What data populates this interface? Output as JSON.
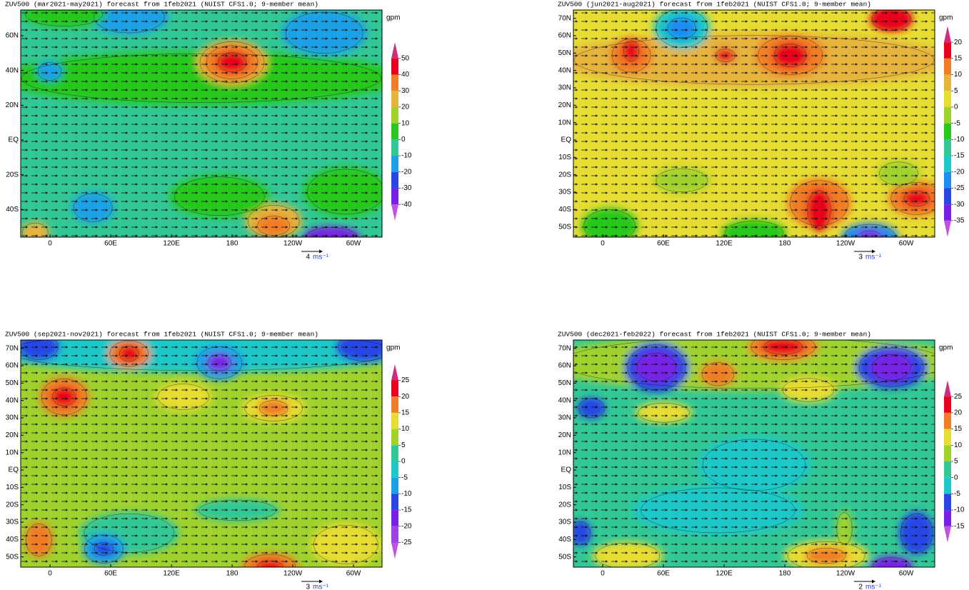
{
  "panels": [
    {
      "title": "ZUV500 (mar2021-may2021) forecast from 1feb2021 (NUIST CFS1.0; 9-member mean)",
      "lat_ticks": [
        {
          "value": 60,
          "label": "60N"
        },
        {
          "value": 40,
          "label": "40N"
        },
        {
          "value": 20,
          "label": "20N"
        },
        {
          "value": 0,
          "label": "EQ"
        },
        {
          "value": -20,
          "label": "20S"
        },
        {
          "value": -40,
          "label": "40S"
        }
      ],
      "lon_ticks": [
        {
          "value": 0,
          "label": "0"
        },
        {
          "value": 60,
          "label": "60E"
        },
        {
          "value": 120,
          "label": "120E"
        },
        {
          "value": 180,
          "label": "180"
        },
        {
          "value": 240,
          "label": "120W"
        },
        {
          "value": 300,
          "label": "60W"
        }
      ],
      "colorbar": {
        "unit": "gpm",
        "levels": [
          50,
          40,
          30,
          20,
          10,
          0,
          -10,
          -20,
          -30,
          -40
        ],
        "colors": [
          "#d2297b",
          "#e8001e",
          "#f07d27",
          "#e6b43c",
          "#a0d22d",
          "#28c81e",
          "#32c896",
          "#1ea0e6",
          "#2846e6",
          "#7820e6",
          "#c050e6"
        ]
      },
      "reference_vector": {
        "magnitude": 4,
        "unit": "ms⁻¹"
      }
    },
    {
      "title": "ZUV500 (jun2021-aug2021) forecast from 1feb2021 (NUIST CFS1.0; 9-member mean)",
      "lat_ticks": [
        {
          "value": 70,
          "label": "70N"
        },
        {
          "value": 60,
          "label": "60N"
        },
        {
          "value": 50,
          "label": "50N"
        },
        {
          "value": 40,
          "label": "40N"
        },
        {
          "value": 30,
          "label": "30N"
        },
        {
          "value": 20,
          "label": "20N"
        },
        {
          "value": 10,
          "label": "10N"
        },
        {
          "value": 0,
          "label": "EQ"
        },
        {
          "value": -10,
          "label": "10S"
        },
        {
          "value": -20,
          "label": "20S"
        },
        {
          "value": -30,
          "label": "30S"
        },
        {
          "value": -40,
          "label": "40S"
        },
        {
          "value": -50,
          "label": "50S"
        }
      ],
      "lon_ticks": [
        {
          "value": 0,
          "label": "0"
        },
        {
          "value": 60,
          "label": "60E"
        },
        {
          "value": 120,
          "label": "120E"
        },
        {
          "value": 180,
          "label": "180"
        },
        {
          "value": 240,
          "label": "120W"
        },
        {
          "value": 300,
          "label": "60W"
        }
      ],
      "colorbar": {
        "unit": "gpm",
        "levels": [
          20,
          15,
          10,
          5,
          0,
          -5,
          -10,
          -15,
          -20,
          -25,
          -30,
          -35
        ],
        "colors": [
          "#d2297b",
          "#e8001e",
          "#f07d27",
          "#e6b43c",
          "#e6dc32",
          "#a0d22d",
          "#28c81e",
          "#32c896",
          "#1ec8c8",
          "#1e8cf0",
          "#2846e6",
          "#7820e6",
          "#c050e6"
        ]
      },
      "reference_vector": {
        "magnitude": 3,
        "unit": "ms⁻¹"
      }
    },
    {
      "title": "ZUV500 (sep2021-nov2021) forecast from 1feb2021 (NUIST CFS1.0; 9-member mean)",
      "lat_ticks": [
        {
          "value": 70,
          "label": "70N"
        },
        {
          "value": 60,
          "label": "60N"
        },
        {
          "value": 50,
          "label": "50N"
        },
        {
          "value": 40,
          "label": "40N"
        },
        {
          "value": 30,
          "label": "30N"
        },
        {
          "value": 20,
          "label": "20N"
        },
        {
          "value": 10,
          "label": "10N"
        },
        {
          "value": 0,
          "label": "EQ"
        },
        {
          "value": -10,
          "label": "10S"
        },
        {
          "value": -20,
          "label": "20S"
        },
        {
          "value": -30,
          "label": "30S"
        },
        {
          "value": -40,
          "label": "40S"
        },
        {
          "value": -50,
          "label": "50S"
        }
      ],
      "lon_ticks": [
        {
          "value": 0,
          "label": "0"
        },
        {
          "value": 60,
          "label": "60E"
        },
        {
          "value": 120,
          "label": "120E"
        },
        {
          "value": 180,
          "label": "180"
        },
        {
          "value": 240,
          "label": "120W"
        },
        {
          "value": 300,
          "label": "60W"
        }
      ],
      "colorbar": {
        "unit": "gpm",
        "levels": [
          25,
          20,
          15,
          10,
          5,
          0,
          -5,
          -10,
          -15,
          -20,
          -25
        ],
        "colors": [
          "#d2297b",
          "#e8001e",
          "#f07d27",
          "#e6dc32",
          "#a0d22d",
          "#32c896",
          "#1ec8c8",
          "#1ea0e6",
          "#2846e6",
          "#7820e6",
          "#a040e6",
          "#c050e6"
        ]
      },
      "reference_vector": {
        "magnitude": 3,
        "unit": "ms⁻¹"
      }
    },
    {
      "title": "ZUV500 (dec2021-feb2022) forecast from 1feb2021 (NUIST CFS1.0; 9-member mean)",
      "lat_ticks": [
        {
          "value": 70,
          "label": "70N"
        },
        {
          "value": 60,
          "label": "60N"
        },
        {
          "value": 50,
          "label": "50N"
        },
        {
          "value": 40,
          "label": "40N"
        },
        {
          "value": 30,
          "label": "30N"
        },
        {
          "value": 20,
          "label": "20N"
        },
        {
          "value": 10,
          "label": "10N"
        },
        {
          "value": 0,
          "label": "EQ"
        },
        {
          "value": -10,
          "label": "10S"
        },
        {
          "value": -20,
          "label": "20S"
        },
        {
          "value": -30,
          "label": "30S"
        },
        {
          "value": -40,
          "label": "40S"
        },
        {
          "value": -50,
          "label": "50S"
        }
      ],
      "lon_ticks": [
        {
          "value": 0,
          "label": "0"
        },
        {
          "value": 60,
          "label": "60E"
        },
        {
          "value": 120,
          "label": "120E"
        },
        {
          "value": 180,
          "label": "180"
        },
        {
          "value": 240,
          "label": "120W"
        },
        {
          "value": 300,
          "label": "60W"
        }
      ],
      "colorbar": {
        "unit": "gpm",
        "levels": [
          25,
          20,
          15,
          10,
          5,
          0,
          -5,
          -10,
          -15
        ],
        "colors": [
          "#d2297b",
          "#e8001e",
          "#f07d27",
          "#e6dc32",
          "#a0d22d",
          "#32c896",
          "#1ec8c8",
          "#2846e6",
          "#7820e6",
          "#c050e6"
        ]
      },
      "reference_vector": {
        "magnitude": 2,
        "unit": "ms⁻¹"
      }
    }
  ]
}
